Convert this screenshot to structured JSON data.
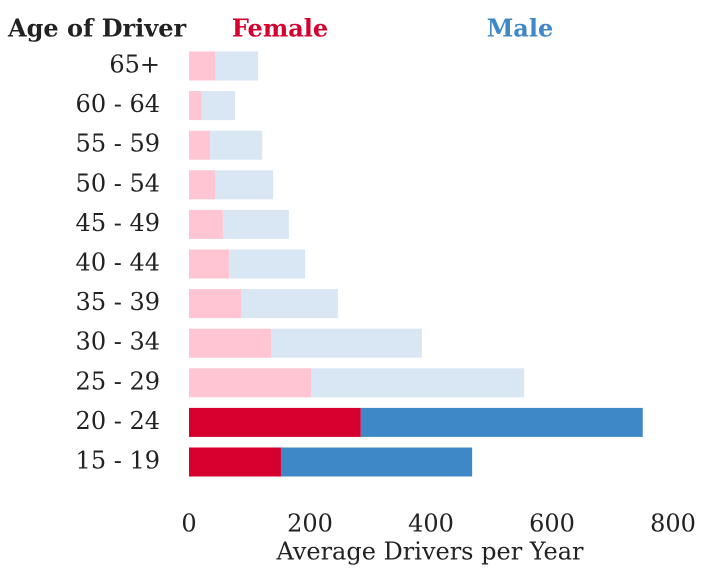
{
  "chart_data": {
    "type": "stacked_bar_horizontal",
    "ylabel": "Age of Driver",
    "xlabel": "Average Drivers per Year",
    "categories": [
      "65+",
      "60 - 64",
      "55 - 59",
      "50 - 54",
      "45 - 49",
      "40 - 44",
      "35 - 39",
      "30 - 34",
      "25 - 29",
      "20 - 24",
      "15 - 19"
    ],
    "series": [
      {
        "name": "Female",
        "color": "#d6002f",
        "colors": [
          "#ffc5d3",
          "#ffc5d3",
          "#ffc5d3",
          "#ffc5d3",
          "#ffc5d3",
          "#ffc5d3",
          "#ffc5d3",
          "#ffc5d3",
          "#ffc5d3",
          "#d6002f",
          "#d6002f"
        ],
        "values": [
          43,
          21,
          35,
          43,
          56,
          66,
          86,
          136,
          202,
          284,
          152
        ]
      },
      {
        "name": "Male",
        "color": "#3f88c8",
        "colors": [
          "#d9e6f4",
          "#d9e6f4",
          "#d9e6f4",
          "#d9e6f4",
          "#d9e6f4",
          "#d9e6f4",
          "#d9e6f4",
          "#d9e6f4",
          "#d9e6f4",
          "#3f88c8",
          "#3f88c8"
        ],
        "values": [
          71,
          55,
          86,
          96,
          109,
          126,
          160,
          249,
          352,
          466,
          316
        ]
      }
    ],
    "xlim": [
      0,
      800
    ],
    "xticks": [
      0,
      200,
      400,
      600,
      800
    ]
  }
}
